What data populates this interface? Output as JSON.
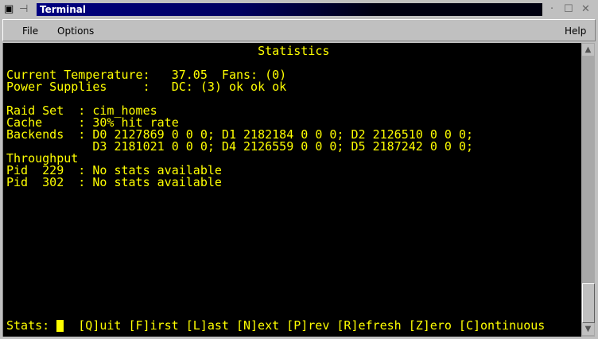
{
  "window": {
    "title": "Terminal"
  },
  "menu": {
    "file": "File",
    "options": "Options",
    "help": "Help"
  },
  "terminal": {
    "lines": [
      "                                   Statistics",
      "",
      "Current Temperature:   37.05  Fans: (0)",
      "Power Supplies     :   DC: (3) ok ok ok",
      "",
      "Raid Set  : cim_homes",
      "Cache     : 30% hit rate",
      "Backends  : D0 2127869 0 0 0; D1 2182184 0 0 0; D2 2126510 0 0 0;",
      "            D3 2181021 0 0 0; D4 2126559 0 0 0; D5 2187242 0 0 0;",
      "Throughput",
      "Pid  229  : No stats available",
      "Pid  302  : No stats available"
    ],
    "prompt": "Stats: ",
    "commands": "  [Q]uit [F]irst [L]ast [N]ext [P]rev [R]efresh [Z]ero [C]ontinuous"
  },
  "colors": {
    "text": "#ffff00",
    "background": "#000000",
    "titlebar": "#000080"
  }
}
